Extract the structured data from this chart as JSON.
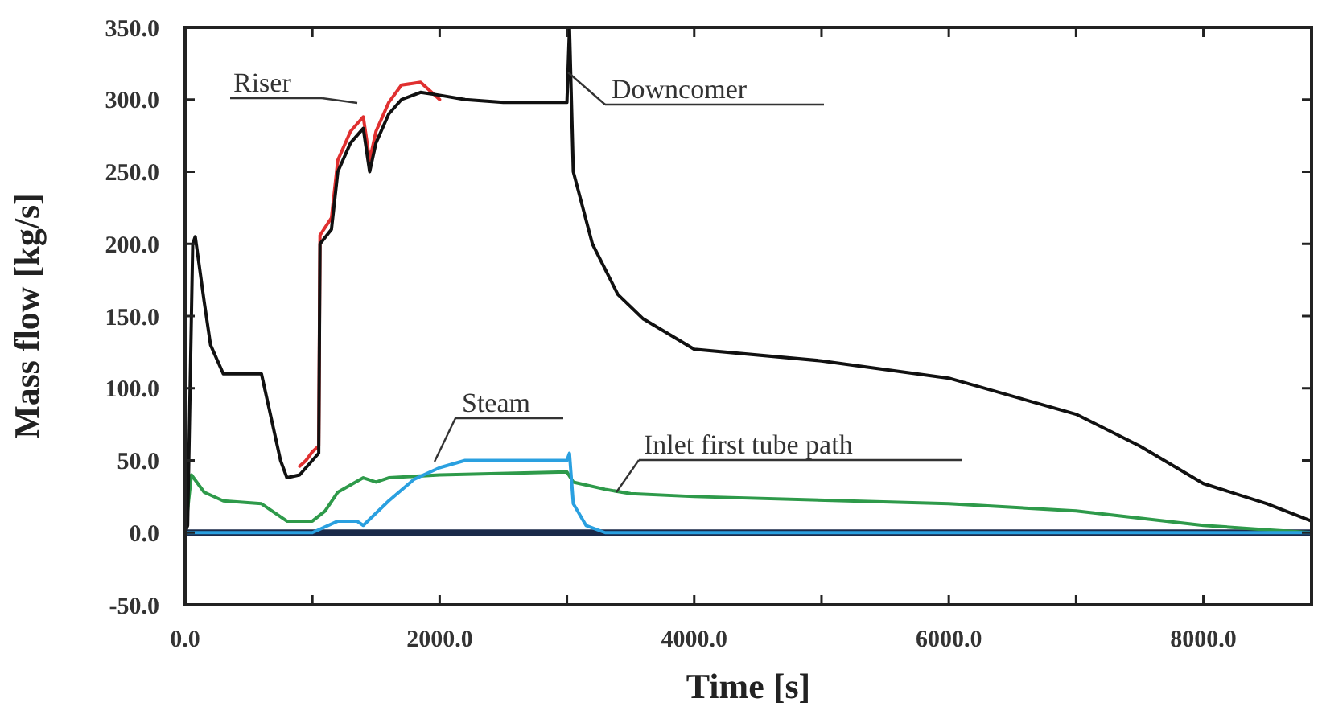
{
  "chart_data": {
    "type": "line",
    "xlabel": "Time [s]",
    "ylabel": "Mass flow  [kg/s]",
    "xlim": [
      0,
      8850
    ],
    "ylim": [
      -50,
      350
    ],
    "xticks": [
      {
        "value": 0,
        "label": "0.0"
      },
      {
        "value": 1000,
        "label": null
      },
      {
        "value": 2000,
        "label": "2000.0"
      },
      {
        "value": 3000,
        "label": null
      },
      {
        "value": 4000,
        "label": "4000.0"
      },
      {
        "value": 5000,
        "label": null
      },
      {
        "value": 6000,
        "label": "6000.0"
      },
      {
        "value": 7000,
        "label": null
      },
      {
        "value": 8000,
        "label": "8000.0"
      }
    ],
    "yticks": [
      {
        "value": -50,
        "label": "-50.0"
      },
      {
        "value": 0,
        "label": "0.0"
      },
      {
        "value": 50,
        "label": "50.0"
      },
      {
        "value": 100,
        "label": "100.0"
      },
      {
        "value": 150,
        "label": "150.0"
      },
      {
        "value": 200,
        "label": "200.0"
      },
      {
        "value": 250,
        "label": "250.0"
      },
      {
        "value": 300,
        "label": "300.0"
      },
      {
        "value": 350,
        "label": "350.0"
      }
    ],
    "grid": false,
    "marker": "none",
    "line_style": "solid",
    "series": [
      {
        "color": "#1a2a4a",
        "x": [
          0,
          8850
        ],
        "values": [
          0,
          0
        ]
      },
      {
        "name": "Inlet first tube path",
        "color": "#2e9a4a",
        "x": [
          0,
          50,
          150,
          300,
          600,
          700,
          800,
          1000,
          1100,
          1200,
          1300,
          1400,
          1500,
          1600,
          2000,
          3000,
          3050,
          3300,
          3500,
          4000,
          6000,
          7000,
          7500,
          8000,
          8500,
          8850
        ],
        "values": [
          0,
          40,
          28,
          22,
          20,
          14,
          8,
          8,
          15,
          28,
          33,
          38,
          35,
          38,
          40,
          42,
          35,
          30,
          27,
          25,
          20,
          15,
          10,
          5,
          2,
          0
        ]
      },
      {
        "name": "Steam",
        "color": "#2aa0e0",
        "x": [
          0,
          1000,
          1200,
          1350,
          1400,
          1600,
          1800,
          2000,
          2200,
          3000,
          3020,
          3050,
          3150,
          3300,
          8850
        ],
        "values": [
          0,
          0,
          8,
          8,
          5,
          22,
          37,
          45,
          50,
          50,
          55,
          20,
          5,
          0,
          0
        ]
      },
      {
        "name": "Riser",
        "color": "#e03030",
        "x": [
          900,
          950,
          1000,
          1050,
          1060,
          1150,
          1200,
          1300,
          1400,
          1450,
          1500,
          1600,
          1700,
          1850,
          2000
        ],
        "values": [
          46,
          50,
          56,
          60,
          206,
          218,
          258,
          278,
          288,
          258,
          278,
          298,
          310,
          312,
          300
        ]
      },
      {
        "name": "Downcomer",
        "color": "#111111",
        "x": [
          0,
          20,
          60,
          80,
          150,
          200,
          300,
          600,
          650,
          750,
          800,
          900,
          1000,
          1050,
          1060,
          1150,
          1200,
          1300,
          1400,
          1450,
          1500,
          1600,
          1700,
          1850,
          2000,
          2200,
          2500,
          3000,
          3020,
          3050,
          3200,
          3400,
          3600,
          4000,
          5000,
          6000,
          7000,
          7500,
          8000,
          8500,
          8850
        ],
        "values": [
          0,
          5,
          200,
          205,
          160,
          130,
          110,
          110,
          90,
          50,
          38,
          40,
          50,
          55,
          200,
          210,
          250,
          270,
          280,
          250,
          270,
          290,
          300,
          305,
          303,
          300,
          298,
          298,
          350,
          250,
          200,
          165,
          148,
          127,
          119,
          107,
          82,
          60,
          34,
          20,
          8
        ]
      }
    ]
  }
}
